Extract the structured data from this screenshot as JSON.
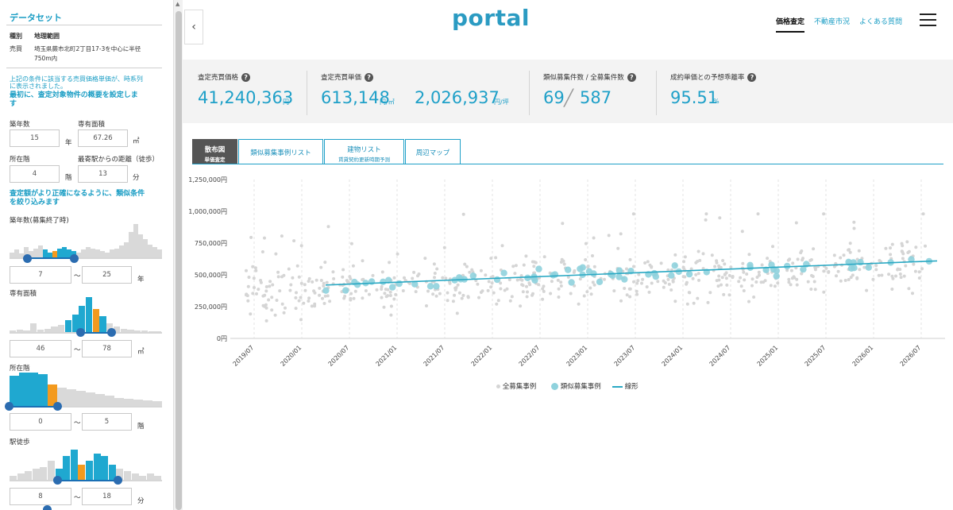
{
  "sidebar": {
    "title": "データセット",
    "kind_label": "種別",
    "kind_value": "地理範囲",
    "sale_label": "売買",
    "sale_value_1": "埼玉県蕨市北町2丁目17-3を中心に半径",
    "sale_value_2": "750m内",
    "note_1": "上記の条件に該当する売買価格単価が、時系列",
    "note_2": "に表示されました。",
    "heading_1_line1": "最初に、査定対象物件の概要を設定しま",
    "heading_1_line2": "す",
    "age_label": "築年数",
    "age_value": "15",
    "age_unit": "年",
    "area_label": "専有面積",
    "area_value": "67.26",
    "area_unit": "㎡",
    "floor_label": "所在階",
    "floor_value": "4",
    "floor_unit": "階",
    "walk_label": "最寄駅からの距離（徒歩）",
    "walk_value": "13",
    "walk_unit": "分",
    "heading_2_line1": "査定額がより正確になるように、類似条件",
    "heading_2_line2": "を絞り込みます",
    "filters": [
      {
        "label": "築年数(募集終了時)",
        "min": "7",
        "max": "25",
        "unit": "年"
      },
      {
        "label": "専有面積",
        "min": "46",
        "max": "78",
        "unit": "㎡"
      },
      {
        "label": "所在階",
        "min": "0",
        "max": "5",
        "unit": "階"
      },
      {
        "label": "駅徒歩",
        "min": "8",
        "max": "18",
        "unit": "分"
      }
    ],
    "range_sep": "〜"
  },
  "header": {
    "logo": "portal",
    "nav": [
      "価格査定",
      "不動産市況",
      "よくある質問"
    ],
    "active_nav": "価格査定"
  },
  "summary": {
    "price_label": "査定売買価格",
    "price_value": "41,240,363",
    "price_unit": "円",
    "unit_label": "査定売買単価",
    "unit_m2_value": "613,148",
    "unit_m2_unit": "円/㎡",
    "unit_tsubo_value": "2,026,937",
    "unit_tsubo_unit": "円/坪",
    "count_label": "類似募集件数 / 全募集件数",
    "count_similar": "69",
    "count_sep": "╱",
    "count_total": "587",
    "gap_label": "成約単価との予想乖離率",
    "gap_value": "95.51",
    "gap_unit": "%",
    "help_glyph": "?"
  },
  "tabs": [
    {
      "label": "散布図",
      "sub": "単価査定",
      "active": true
    },
    {
      "label": "類似募集事例リスト",
      "sub": "",
      "active": false
    },
    {
      "label": "建物リスト",
      "sub": "賃貸契約更新時期予測",
      "active": false
    },
    {
      "label": "周辺マップ",
      "sub": "",
      "active": false
    }
  ],
  "chart_data": {
    "type": "scatter",
    "y_ticks": [
      "1,250,000円",
      "1,000,000円",
      "750,000円",
      "500,000円",
      "250,000円",
      "0円"
    ],
    "y_tick_values": [
      1250000,
      1000000,
      750000,
      500000,
      250000,
      0
    ],
    "ylim": [
      0,
      1250000
    ],
    "x_ticks": [
      "2019/07",
      "2020/01",
      "2020/07",
      "2021/01",
      "2021/07",
      "2022/01",
      "2022/07",
      "2023/01",
      "2023/07",
      "2024/01",
      "2024/07",
      "2025/01",
      "2025/07",
      "2026/01",
      "2026/07"
    ],
    "xlim": [
      "2019/04",
      "2026/10"
    ],
    "grid": "vertical-dashed",
    "legend_position": "bottom-center",
    "series": [
      {
        "name": "全募集事例",
        "kind": "scatter",
        "color": "#d5d5d5",
        "count": 587
      },
      {
        "name": "類似募集事例",
        "kind": "scatter",
        "color": "#8fd2dd",
        "count": 69
      },
      {
        "name": "線形",
        "kind": "line",
        "color": "#2aa9c4",
        "points": [
          [
            "2020/04",
            420000
          ],
          [
            "2026/09",
            610000
          ]
        ]
      }
    ]
  }
}
